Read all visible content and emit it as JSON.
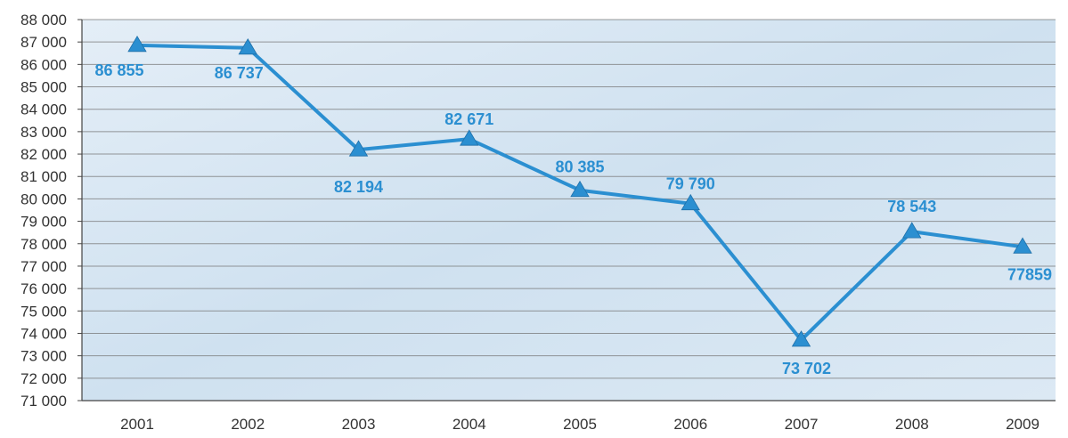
{
  "chart_data": {
    "type": "line",
    "title": "",
    "xlabel": "",
    "ylabel": "",
    "x": [
      "2001",
      "2002",
      "2003",
      "2004",
      "2005",
      "2006",
      "2007",
      "2008",
      "2009"
    ],
    "series": [
      {
        "values": [
          86855,
          86737,
          82194,
          82671,
          80385,
          79790,
          73702,
          78543,
          77859
        ],
        "labels": [
          "86 855",
          "86 737",
          "82 194",
          "82 671",
          "80 385",
          "79 790",
          "73 702",
          "78 543",
          "77859"
        ]
      }
    ],
    "ylim": [
      71000,
      88000
    ],
    "yticks": [
      71000,
      72000,
      73000,
      74000,
      75000,
      76000,
      77000,
      78000,
      79000,
      80000,
      81000,
      82000,
      83000,
      84000,
      85000,
      86000,
      87000,
      88000
    ],
    "ytick_labels": [
      "71 000",
      "72 000",
      "73 000",
      "74 000",
      "75 000",
      "76 000",
      "77 000",
      "78 000",
      "79 000",
      "80 000",
      "81 000",
      "82 000",
      "83 000",
      "84 000",
      "85 000",
      "86 000",
      "87 000",
      "88 000"
    ],
    "grid": true,
    "marker": "triangle",
    "colors": {
      "line": "#2b8fd1",
      "label": "#2b8fd1",
      "grid": "#777777",
      "plot_background": "#d6e6f3",
      "axis": "#444444"
    }
  }
}
